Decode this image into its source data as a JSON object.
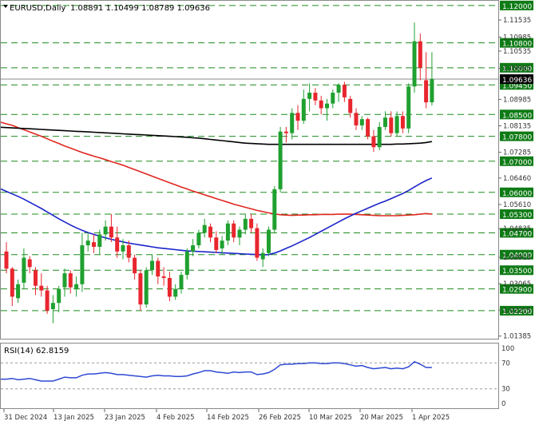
{
  "header": {
    "symbol": "EURUSD,Daily",
    "ohlc": "1.08891 1.10499 1.08789 1.09636"
  },
  "colors": {
    "bull": "#1fa02f",
    "bear": "#e8262e",
    "ma_black": "#000000",
    "ma_red": "#e0271f",
    "ma_blue": "#1b24c9",
    "rsi_line": "#2f49d3",
    "level_line": "#1e8c1e",
    "label_bg": "#0f7b16",
    "price_tag_bg": "#000000"
  },
  "chart_data": [
    {
      "type": "candlestick",
      "series": [
        {
          "name": "EURUSD",
          "candles": [
            [
              1.041,
              1.044,
              1.034,
              1.0355
            ],
            [
              1.0355,
              1.036,
              1.0235,
              1.0265
            ],
            [
              1.026,
              1.032,
              1.0245,
              1.0305
            ],
            [
              1.031,
              1.042,
              1.029,
              1.039
            ],
            [
              1.0385,
              1.0395,
              1.034,
              1.036
            ],
            [
              1.035,
              1.036,
              1.027,
              1.03
            ],
            [
              1.03,
              1.034,
              1.0265,
              1.0285
            ],
            [
              1.0285,
              1.03,
              1.021,
              1.022
            ],
            [
              1.0225,
              1.027,
              1.018,
              1.0245
            ],
            [
              1.0245,
              1.03,
              1.0215,
              1.029
            ],
            [
              1.0295,
              1.0355,
              1.0265,
              1.034
            ],
            [
              1.034,
              1.035,
              1.0275,
              1.0295
            ],
            [
              1.029,
              1.033,
              1.0265,
              1.0305
            ],
            [
              1.0305,
              1.047,
              1.028,
              1.043
            ],
            [
              1.043,
              1.047,
              1.041,
              1.0445
            ],
            [
              1.044,
              1.0465,
              1.0405,
              1.0425
            ],
            [
              1.0425,
              1.048,
              1.04,
              1.0465
            ],
            [
              1.0465,
              1.051,
              1.0445,
              1.049
            ],
            [
              1.049,
              1.053,
              1.044,
              1.0455
            ],
            [
              1.0455,
              1.049,
              1.039,
              1.041
            ],
            [
              1.041,
              1.045,
              1.0385,
              1.043
            ],
            [
              1.043,
              1.0445,
              1.0375,
              1.039
            ],
            [
              1.039,
              1.04,
              1.032,
              1.034
            ],
            [
              1.034,
              1.035,
              1.022,
              1.024
            ],
            [
              1.024,
              1.036,
              1.023,
              1.035
            ],
            [
              1.035,
              1.04,
              1.0335,
              1.038
            ],
            [
              1.038,
              1.039,
              1.0305,
              1.033
            ],
            [
              1.033,
              1.036,
              1.03,
              1.0325
            ],
            [
              1.0325,
              1.0345,
              1.025,
              1.0265
            ],
            [
              1.0265,
              1.0305,
              1.0255,
              1.029
            ],
            [
              1.029,
              1.0345,
              1.0275,
              1.0335
            ],
            [
              1.0335,
              1.042,
              1.032,
              1.041
            ],
            [
              1.041,
              1.045,
              1.0395,
              1.043
            ],
            [
              1.043,
              1.048,
              1.042,
              1.047
            ],
            [
              1.047,
              1.0515,
              1.0455,
              1.0495
            ],
            [
              1.049,
              1.05,
              1.044,
              1.0455
            ],
            [
              1.0455,
              1.0475,
              1.0405,
              1.0415
            ],
            [
              1.042,
              1.046,
              1.04,
              1.0445
            ],
            [
              1.0445,
              1.051,
              1.043,
              1.05
            ],
            [
              1.05,
              1.051,
              1.044,
              1.0455
            ],
            [
              1.0455,
              1.049,
              1.043,
              1.048
            ],
            [
              1.048,
              1.053,
              1.0465,
              1.0515
            ],
            [
              1.0515,
              1.053,
              1.047,
              1.0485
            ],
            [
              1.0485,
              1.05,
              1.038,
              1.039
            ],
            [
              1.0385,
              1.042,
              1.036,
              1.0405
            ],
            [
              1.0405,
              1.049,
              1.0395,
              1.048
            ],
            [
              1.048,
              1.062,
              1.047,
              1.061
            ],
            [
              1.061,
              1.081,
              1.06,
              1.0795
            ],
            [
              1.0795,
              1.081,
              1.076,
              1.079
            ],
            [
              1.079,
              1.087,
              1.077,
              1.0855
            ],
            [
              1.0855,
              1.088,
              1.08,
              1.083
            ],
            [
              1.083,
              1.093,
              1.082,
              1.09
            ],
            [
              1.09,
              1.095,
              1.086,
              1.092
            ],
            [
              1.092,
              1.0935,
              1.088,
              1.0895
            ],
            [
              1.0895,
              1.091,
              1.085,
              1.087
            ],
            [
              1.087,
              1.09,
              1.083,
              1.0885
            ],
            [
              1.0885,
              1.093,
              1.087,
              1.092
            ],
            [
              1.092,
              1.095,
              1.089,
              1.0945
            ],
            [
              1.0945,
              1.0955,
              1.089,
              1.0905
            ],
            [
              1.09,
              1.091,
              1.084,
              1.0855
            ],
            [
              1.0855,
              1.087,
              1.08,
              1.0815
            ],
            [
              1.0815,
              1.0845,
              1.08,
              1.0835
            ],
            [
              1.0835,
              1.084,
              1.077,
              1.078
            ],
            [
              1.078,
              1.08,
              1.073,
              1.0745
            ],
            [
              1.0745,
              1.0825,
              1.0735,
              1.081
            ],
            [
              1.081,
              1.086,
              1.08,
              1.084
            ],
            [
              1.084,
              1.086,
              1.078,
              1.079
            ],
            [
              1.079,
              1.086,
              1.078,
              1.0845
            ],
            [
              1.0845,
              1.086,
              1.079,
              1.0805
            ],
            [
              1.0805,
              1.095,
              1.079,
              1.094
            ],
            [
              1.094,
              1.1145,
              1.092,
              1.1085
            ],
            [
              1.1085,
              1.111,
              1.096,
              1.1
            ],
            [
              1.096,
              1.105,
              1.087,
              1.0889
            ],
            [
              1.0889,
              1.105,
              1.0879,
              1.0964
            ]
          ]
        }
      ],
      "ma_series": [
        {
          "values": [
            1.082,
            1.0815,
            1.0808,
            1.0801,
            1.0794,
            1.0787,
            1.078,
            1.0772,
            1.0764,
            1.0757,
            1.0749,
            1.0742,
            1.0735,
            1.0728,
            1.0722,
            1.0716,
            1.0711,
            1.0705,
            1.0699,
            1.0693,
            1.0687,
            1.068,
            1.0673,
            1.0666,
            1.0659,
            1.0652,
            1.0645,
            1.0638,
            1.0631,
            1.0624,
            1.0617,
            1.0611,
            1.0604,
            1.0598,
            1.0592,
            1.0586,
            1.058,
            1.0574,
            1.0568,
            1.0562,
            1.0557,
            1.0552,
            1.0547,
            1.0542,
            1.0538,
            1.0534,
            1.0531,
            1.0528,
            1.0527,
            1.0526,
            1.0527,
            1.0527,
            1.0528,
            1.0528,
            1.0529,
            1.0529,
            1.0529,
            1.053,
            1.053,
            1.053,
            1.0529,
            1.0528,
            1.0527,
            1.0526,
            1.0525,
            1.0525,
            1.0525,
            1.0525,
            1.0526,
            1.0527,
            1.0528,
            1.053,
            1.0532,
            1.053
          ]
        },
        {
          "values": [
            1.0603,
            1.0595,
            1.0587,
            1.0578,
            1.0568,
            1.0558,
            1.0548,
            1.0537,
            1.0526,
            1.0515,
            1.0505,
            1.0495,
            1.0486,
            1.0478,
            1.0471,
            1.0465,
            1.0459,
            1.0454,
            1.0449,
            1.0445,
            1.0441,
            1.0437,
            1.0434,
            1.0431,
            1.0428,
            1.0425,
            1.0422,
            1.042,
            1.0418,
            1.0416,
            1.0414,
            1.0412,
            1.0411,
            1.041,
            1.0409,
            1.0408,
            1.0407,
            1.0406,
            1.0405,
            1.0404,
            1.0403,
            1.0402,
            1.0401,
            1.04,
            1.0399,
            1.04,
            1.0405,
            1.0412,
            1.042,
            1.0428,
            1.0437,
            1.0446,
            1.0455,
            1.0465,
            1.0475,
            1.0485,
            1.0495,
            1.0505,
            1.0515,
            1.0524,
            1.0533,
            1.0541,
            1.0549,
            1.0557,
            1.0565,
            1.0572,
            1.058,
            1.0588,
            1.0596,
            1.0606,
            1.0617,
            1.0628,
            1.0638,
            1.0646
          ]
        },
        {
          "values": [
            1.0808,
            1.0807,
            1.0806,
            1.0805,
            1.0804,
            1.0803,
            1.0802,
            1.0801,
            1.08,
            1.0799,
            1.0798,
            1.0797,
            1.0796,
            1.0795,
            1.0794,
            1.0793,
            1.0792,
            1.0791,
            1.079,
            1.0789,
            1.0788,
            1.0787,
            1.0786,
            1.0785,
            1.0784,
            1.0783,
            1.0782,
            1.0781,
            1.078,
            1.0779,
            1.0778,
            1.0777,
            1.0775,
            1.0774,
            1.0772,
            1.077,
            1.0768,
            1.0766,
            1.0764,
            1.0762,
            1.076,
            1.0758,
            1.0757,
            1.0756,
            1.0755,
            1.0754,
            1.0754,
            1.0754,
            1.0754,
            1.0754,
            1.0754,
            1.0754,
            1.0754,
            1.0754,
            1.0754,
            1.0754,
            1.0754,
            1.0754,
            1.0754,
            1.0754,
            1.0754,
            1.0754,
            1.0754,
            1.0754,
            1.0754,
            1.0754,
            1.0754,
            1.0755,
            1.0755,
            1.0756,
            1.0757,
            1.0758,
            1.076,
            1.0763
          ]
        }
      ],
      "horizontal_levels": [
        "1.12000",
        "1.10800",
        "1.10000",
        "1.09450",
        "1.08500",
        "1.07800",
        "1.07000",
        "1.06000",
        "1.05300",
        "1.04700",
        "1.04000",
        "1.03500",
        "1.02900",
        "1.02200"
      ],
      "y_tick_labels": [
        "1.11535",
        "1.10985",
        "1.10535",
        "1.09985",
        "1.09636",
        "1.08985",
        "1.08135",
        "1.07285",
        "1.06460",
        "1.05610",
        "1.04835",
        "1.03915",
        "1.03065",
        "1.02215",
        "1.01385"
      ],
      "current_price": "1.09636",
      "x_tick_labels": [
        "31 Dec 2024",
        "13 Jan 2025",
        "23 Jan 2025",
        "4 Feb 2025",
        "14 Feb 2025",
        "26 Feb 2025",
        "10 Mar 2025",
        "20 Mar 2025",
        "1 Apr 2025"
      ],
      "ylim": [
        1.013,
        1.1215
      ]
    },
    {
      "type": "line",
      "title": "RSI(14) 62.8159",
      "values": [
        45,
        46,
        44,
        45,
        46,
        44,
        42,
        42,
        42,
        45,
        48,
        47,
        47,
        51,
        53,
        53,
        54,
        55,
        54,
        52,
        52,
        51,
        50,
        49,
        48,
        50,
        51,
        50,
        50,
        49,
        49,
        50,
        53,
        55,
        58,
        58,
        56,
        55,
        54,
        56,
        55,
        56,
        56,
        52,
        53,
        55,
        60,
        67,
        68,
        68,
        69,
        69,
        70,
        70,
        69,
        69,
        70,
        70,
        69,
        67,
        65,
        66,
        63,
        61,
        62,
        63,
        61,
        62,
        61,
        64,
        72,
        68,
        63,
        63
      ],
      "y_tick_labels": [
        "100",
        "70",
        "30",
        "0"
      ],
      "levels": [
        70,
        30
      ],
      "ylim": [
        0,
        100
      ]
    }
  ]
}
